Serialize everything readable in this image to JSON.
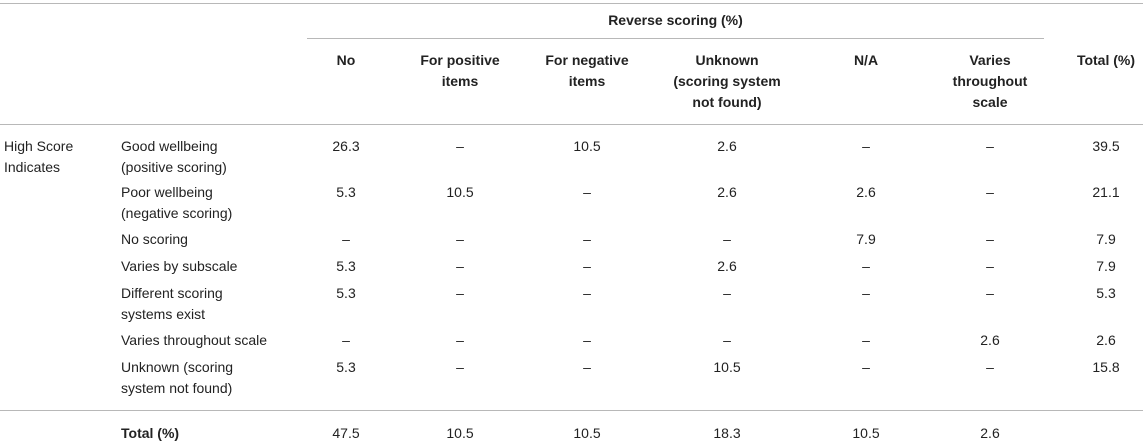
{
  "header": {
    "group_title": "Reverse scoring (%)",
    "columns": [
      "No",
      "For positive\nitems",
      "For negative\nitems",
      "Unknown\n(scoring system\nnot found)",
      "N/A",
      "Varies\nthroughout\nscale",
      "Total (%)"
    ]
  },
  "row_group_label": "High Score\nIndicates",
  "rows": [
    {
      "label": "Good wellbeing\n(positive scoring)",
      "values": [
        "26.3",
        "–",
        "10.5",
        "2.6",
        "–",
        "–",
        "39.5"
      ]
    },
    {
      "label": "Poor wellbeing\n(negative scoring)",
      "values": [
        "5.3",
        "10.5",
        "–",
        "2.6",
        "2.6",
        "–",
        "21.1"
      ]
    },
    {
      "label": "No scoring",
      "values": [
        "–",
        "–",
        "–",
        "–",
        "7.9",
        "–",
        "7.9"
      ]
    },
    {
      "label": "Varies by subscale",
      "values": [
        "5.3",
        "–",
        "–",
        "2.6",
        "–",
        "–",
        "7.9"
      ]
    },
    {
      "label": "Different scoring\nsystems exist",
      "values": [
        "5.3",
        "–",
        "–",
        "–",
        "–",
        "–",
        "5.3"
      ]
    },
    {
      "label": "Varies throughout scale",
      "values": [
        "–",
        "–",
        "–",
        "–",
        "–",
        "2.6",
        "2.6"
      ]
    },
    {
      "label": "Unknown (scoring\nsystem not found)",
      "values": [
        "5.3",
        "–",
        "–",
        "10.5",
        "–",
        "–",
        "15.8"
      ]
    }
  ],
  "total_row": {
    "label": "Total (%)",
    "values": [
      "47.5",
      "10.5",
      "10.5",
      "18.3",
      "10.5",
      "2.6",
      ""
    ]
  }
}
